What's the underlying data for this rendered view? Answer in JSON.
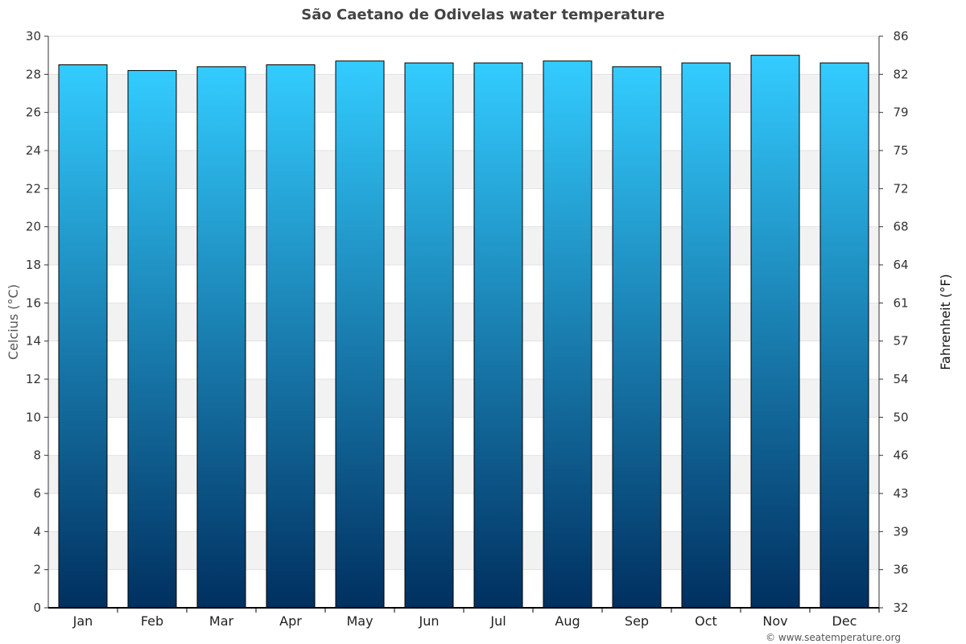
{
  "chart_data": {
    "type": "bar",
    "title": "São Caetano de Odivelas water temperature",
    "categories": [
      "Jan",
      "Feb",
      "Mar",
      "Apr",
      "May",
      "Jun",
      "Jul",
      "Aug",
      "Sep",
      "Oct",
      "Nov",
      "Dec"
    ],
    "series": [
      {
        "values": [
          28.5,
          28.2,
          28.4,
          28.5,
          28.7,
          28.6,
          28.6,
          28.7,
          28.4,
          28.6,
          29.0,
          28.6
        ]
      }
    ],
    "ylabel": "Celcius (°C)",
    "ylabel_right": "Fahrenheit (°F)",
    "ylim": [
      0,
      30
    ],
    "yticks": [
      "0",
      "2",
      "4",
      "6",
      "8",
      "10",
      "12",
      "14",
      "16",
      "18",
      "20",
      "22",
      "24",
      "26",
      "28",
      "30"
    ],
    "yticks_right": [
      "32",
      "36",
      "39",
      "43",
      "46",
      "50",
      "54",
      "57",
      "61",
      "64",
      "68",
      "72",
      "75",
      "79",
      "82",
      "86"
    ],
    "grid": "horizontal alternating bands",
    "colors": {
      "bar_top": "#33ccff",
      "bar_bottom": "#003060",
      "band": "#f2f2f3",
      "axis": "#000000"
    }
  },
  "credit": "© www.seatemperature.org"
}
